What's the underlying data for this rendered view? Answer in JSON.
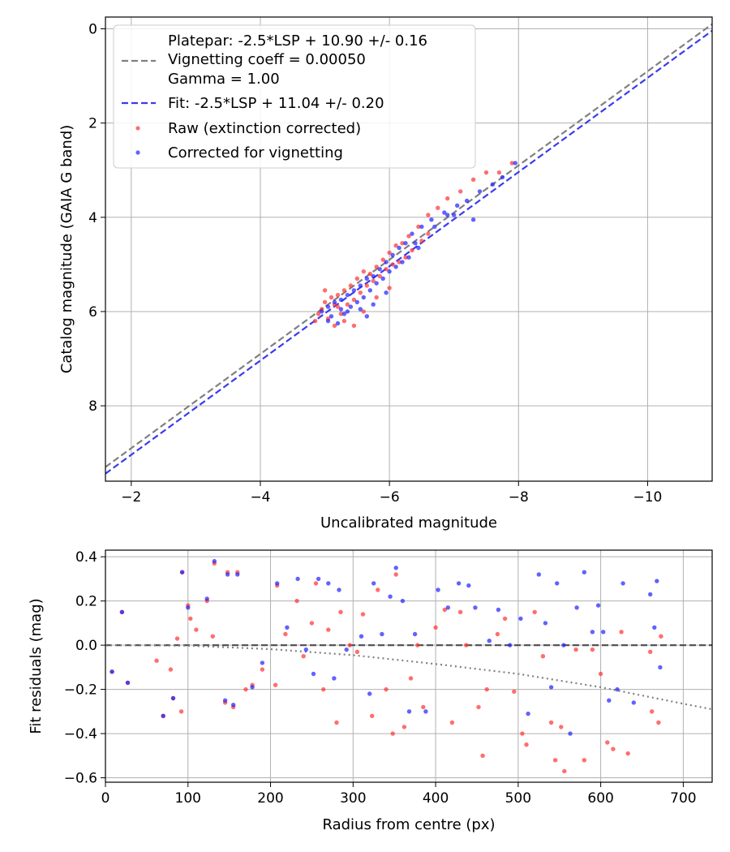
{
  "chart_data": [
    {
      "type": "scatter",
      "xlabel": "Uncalibrated magnitude",
      "ylabel": "Catalog magnitude (GAIA G band)",
      "xlim": [
        -1.6,
        -11.0
      ],
      "ylim": [
        9.6,
        -0.25
      ],
      "x_inverted": true,
      "y_inverted": true,
      "xticks": [
        -2,
        -4,
        -6,
        -8,
        -10
      ],
      "yticks": [
        0,
        2,
        4,
        6,
        8
      ],
      "grid": true,
      "legend_position": "upper-left",
      "lines": [
        {
          "name": "platepar",
          "legend": [
            "Platepar: -2.5*LSP + 10.90 +/- 0.16",
            "Vignetting coeff = 0.00050",
            "Gamma = 1.00"
          ],
          "slope": 1,
          "intercept": 10.9,
          "color": "#808080",
          "style": "dashed"
        },
        {
          "name": "fit",
          "legend": [
            "Fit: -2.5*LSP + 11.04 +/- 0.20"
          ],
          "slope": 1,
          "intercept": 11.04,
          "color": "#3a3af0",
          "style": "dashed"
        }
      ],
      "series": [
        {
          "name": "Raw (extinction corrected)",
          "color": "#ff3030",
          "points": [
            [
              -7.9,
              2.85
            ],
            [
              -7.7,
              3.05
            ],
            [
              -7.5,
              3.05
            ],
            [
              -7.3,
              3.2
            ],
            [
              -7.1,
              3.45
            ],
            [
              -6.9,
              3.6
            ],
            [
              -6.75,
              3.8
            ],
            [
              -6.6,
              3.95
            ],
            [
              -6.45,
              4.2
            ],
            [
              -6.3,
              4.4
            ],
            [
              -6.2,
              4.55
            ],
            [
              -6.1,
              4.6
            ],
            [
              -6.0,
              4.75
            ],
            [
              -5.9,
              4.9
            ],
            [
              -5.8,
              5.05
            ],
            [
              -5.7,
              5.2
            ],
            [
              -5.6,
              5.15
            ],
            [
              -5.5,
              5.3
            ],
            [
              -5.4,
              5.45
            ],
            [
              -5.3,
              5.55
            ],
            [
              -5.2,
              5.65
            ],
            [
              -5.1,
              5.7
            ],
            [
              -5.0,
              5.8
            ],
            [
              -4.95,
              5.95
            ],
            [
              -4.9,
              6.05
            ],
            [
              -5.05,
              6.15
            ],
            [
              -5.15,
              6.3
            ],
            [
              -5.25,
              6.05
            ],
            [
              -5.35,
              5.85
            ],
            [
              -5.45,
              5.75
            ],
            [
              -5.55,
              5.6
            ],
            [
              -5.65,
              5.45
            ],
            [
              -5.75,
              5.35
            ],
            [
              -5.85,
              5.25
            ],
            [
              -5.95,
              5.1
            ],
            [
              -6.05,
              5.0
            ],
            [
              -6.15,
              4.95
            ],
            [
              -6.25,
              4.85
            ],
            [
              -6.35,
              4.7
            ],
            [
              -6.5,
              4.5
            ],
            [
              -6.6,
              4.35
            ],
            [
              -5.0,
              5.55
            ],
            [
              -5.2,
              5.9
            ],
            [
              -5.3,
              6.2
            ],
            [
              -5.6,
              6.0
            ],
            [
              -5.8,
              5.7
            ],
            [
              -6.0,
              5.5
            ],
            [
              -5.45,
              6.3
            ],
            [
              -5.15,
              5.85
            ],
            [
              -4.85,
              6.2
            ]
          ]
        },
        {
          "name": "Corrected for vignetting",
          "color": "#2020ff",
          "points": [
            [
              -7.95,
              2.85
            ],
            [
              -7.75,
              3.15
            ],
            [
              -7.6,
              3.3
            ],
            [
              -7.4,
              3.45
            ],
            [
              -7.2,
              3.65
            ],
            [
              -7.05,
              3.75
            ],
            [
              -6.85,
              3.9
            ],
            [
              -6.65,
              4.05
            ],
            [
              -6.5,
              4.2
            ],
            [
              -6.35,
              4.35
            ],
            [
              -6.25,
              4.55
            ],
            [
              -6.15,
              4.65
            ],
            [
              -6.05,
              4.8
            ],
            [
              -5.95,
              4.95
            ],
            [
              -5.85,
              5.1
            ],
            [
              -5.75,
              5.25
            ],
            [
              -5.65,
              5.3
            ],
            [
              -5.55,
              5.45
            ],
            [
              -5.45,
              5.55
            ],
            [
              -5.35,
              5.65
            ],
            [
              -5.25,
              5.75
            ],
            [
              -5.15,
              5.8
            ],
            [
              -5.05,
              5.9
            ],
            [
              -4.95,
              6.0
            ],
            [
              -5.1,
              6.1
            ],
            [
              -5.2,
              6.25
            ],
            [
              -5.3,
              6.05
            ],
            [
              -5.4,
              5.9
            ],
            [
              -5.5,
              5.8
            ],
            [
              -5.6,
              5.7
            ],
            [
              -5.7,
              5.55
            ],
            [
              -5.8,
              5.4
            ],
            [
              -5.9,
              5.3
            ],
            [
              -6.0,
              5.15
            ],
            [
              -6.1,
              5.05
            ],
            [
              -6.2,
              4.95
            ],
            [
              -6.3,
              4.85
            ],
            [
              -6.45,
              4.65
            ],
            [
              -7.3,
              4.05
            ],
            [
              -7.0,
              3.95
            ],
            [
              -5.35,
              6.0
            ],
            [
              -5.55,
              5.95
            ],
            [
              -5.75,
              5.85
            ],
            [
              -5.95,
              5.6
            ],
            [
              -5.25,
              5.95
            ],
            [
              -5.05,
              6.2
            ],
            [
              -5.65,
              6.1
            ],
            [
              -6.4,
              4.55
            ],
            [
              -6.7,
              4.2
            ],
            [
              -6.9,
              3.95
            ]
          ]
        }
      ]
    },
    {
      "type": "scatter",
      "xlabel": "Radius from centre (px)",
      "ylabel": "Fit residuals (mag)",
      "xlim": [
        0,
        735
      ],
      "ylim": [
        -0.62,
        0.43
      ],
      "xticks": [
        0,
        100,
        200,
        300,
        400,
        500,
        600,
        700
      ],
      "yticks": [
        0.4,
        0.2,
        0.0,
        -0.2,
        -0.4,
        -0.6
      ],
      "ytick_labels": [
        "0.4",
        "0.2",
        "0.0",
        "−0.2",
        "−0.4",
        "−0.6"
      ],
      "grid": true,
      "lines": [
        {
          "name": "zero-line",
          "points": [
            [
              0,
              0
            ],
            [
              735,
              0
            ]
          ],
          "color": "#555555",
          "style": "dashed"
        },
        {
          "name": "vignetting-curve",
          "points": [
            [
              0,
              0
            ],
            [
              100,
              -0.002
            ],
            [
              200,
              -0.018
            ],
            [
              300,
              -0.045
            ],
            [
              400,
              -0.085
            ],
            [
              500,
              -0.13
            ],
            [
              600,
              -0.19
            ],
            [
              700,
              -0.265
            ],
            [
              735,
              -0.29
            ]
          ],
          "color": "#808080",
          "style": "dotted"
        }
      ],
      "series": [
        {
          "name": "Raw",
          "color": "#ff3030",
          "points": [
            [
              8,
              -0.12
            ],
            [
              20,
              0.15
            ],
            [
              27,
              -0.17
            ],
            [
              62,
              -0.07
            ],
            [
              70,
              -0.32
            ],
            [
              79,
              -0.11
            ],
            [
              82,
              -0.24
            ],
            [
              87,
              0.03
            ],
            [
              92,
              -0.3
            ],
            [
              93,
              0.33
            ],
            [
              100,
              0.18
            ],
            [
              103,
              0.12
            ],
            [
              110,
              0.07
            ],
            [
              123,
              0.2
            ],
            [
              130,
              0.04
            ],
            [
              132,
              0.37
            ],
            [
              145,
              -0.26
            ],
            [
              148,
              0.33
            ],
            [
              155,
              -0.28
            ],
            [
              160,
              0.33
            ],
            [
              170,
              -0.2
            ],
            [
              178,
              -0.18
            ],
            [
              190,
              -0.11
            ],
            [
              206,
              -0.18
            ],
            [
              208,
              0.27
            ],
            [
              218,
              0.05
            ],
            [
              232,
              0.2
            ],
            [
              240,
              -0.05
            ],
            [
              250,
              0.1
            ],
            [
              255,
              0.28
            ],
            [
              264,
              -0.2
            ],
            [
              270,
              0.07
            ],
            [
              280,
              -0.35
            ],
            [
              285,
              0.15
            ],
            [
              296,
              0.0
            ],
            [
              305,
              -0.03
            ],
            [
              312,
              0.14
            ],
            [
              323,
              -0.32
            ],
            [
              330,
              0.25
            ],
            [
              340,
              -0.2
            ],
            [
              348,
              -0.4
            ],
            [
              352,
              0.32
            ],
            [
              362,
              -0.37
            ],
            [
              370,
              -0.15
            ],
            [
              378,
              0.0
            ],
            [
              385,
              -0.28
            ],
            [
              400,
              0.08
            ],
            [
              411,
              0.16
            ],
            [
              420,
              -0.35
            ],
            [
              430,
              0.15
            ],
            [
              437,
              0.0
            ],
            [
              452,
              -0.28
            ],
            [
              457,
              -0.5
            ],
            [
              462,
              -0.2
            ],
            [
              475,
              0.05
            ],
            [
              484,
              0.12
            ],
            [
              495,
              -0.21
            ],
            [
              505,
              -0.4
            ],
            [
              510,
              -0.45
            ],
            [
              520,
              0.15
            ],
            [
              530,
              -0.05
            ],
            [
              540,
              -0.35
            ],
            [
              545,
              -0.52
            ],
            [
              552,
              -0.37
            ],
            [
              556,
              -0.57
            ],
            [
              570,
              -0.02
            ],
            [
              580,
              -0.52
            ],
            [
              590,
              -0.02
            ],
            [
              600,
              -0.13
            ],
            [
              608,
              -0.44
            ],
            [
              615,
              -0.47
            ],
            [
              625,
              0.06
            ],
            [
              633,
              -0.49
            ],
            [
              660,
              -0.03
            ],
            [
              662,
              -0.3
            ],
            [
              670,
              -0.35
            ],
            [
              673,
              0.04
            ]
          ]
        },
        {
          "name": "Corrected",
          "color": "#2020ff",
          "points": [
            [
              8,
              -0.12
            ],
            [
              20,
              0.15
            ],
            [
              27,
              -0.17
            ],
            [
              70,
              -0.32
            ],
            [
              82,
              -0.24
            ],
            [
              93,
              0.33
            ],
            [
              100,
              0.17
            ],
            [
              123,
              0.21
            ],
            [
              132,
              0.38
            ],
            [
              145,
              -0.25
            ],
            [
              148,
              0.32
            ],
            [
              155,
              -0.27
            ],
            [
              160,
              0.32
            ],
            [
              178,
              -0.19
            ],
            [
              190,
              -0.08
            ],
            [
              208,
              0.28
            ],
            [
              220,
              0.08
            ],
            [
              233,
              0.3
            ],
            [
              243,
              -0.02
            ],
            [
              252,
              -0.13
            ],
            [
              258,
              0.3
            ],
            [
              270,
              0.28
            ],
            [
              277,
              -0.15
            ],
            [
              283,
              0.25
            ],
            [
              292,
              -0.02
            ],
            [
              310,
              0.04
            ],
            [
              320,
              -0.22
            ],
            [
              325,
              0.28
            ],
            [
              335,
              0.05
            ],
            [
              345,
              0.22
            ],
            [
              352,
              0.35
            ],
            [
              360,
              0.2
            ],
            [
              368,
              -0.3
            ],
            [
              375,
              0.05
            ],
            [
              388,
              -0.3
            ],
            [
              403,
              0.25
            ],
            [
              415,
              0.17
            ],
            [
              428,
              0.28
            ],
            [
              440,
              0.27
            ],
            [
              448,
              0.17
            ],
            [
              465,
              0.02
            ],
            [
              476,
              0.16
            ],
            [
              490,
              0.0
            ],
            [
              503,
              0.12
            ],
            [
              512,
              -0.31
            ],
            [
              525,
              0.32
            ],
            [
              533,
              0.1
            ],
            [
              540,
              -0.19
            ],
            [
              547,
              0.28
            ],
            [
              555,
              0.0
            ],
            [
              563,
              -0.4
            ],
            [
              571,
              0.17
            ],
            [
              580,
              0.33
            ],
            [
              590,
              0.06
            ],
            [
              597,
              0.18
            ],
            [
              603,
              0.06
            ],
            [
              610,
              -0.25
            ],
            [
              620,
              -0.2
            ],
            [
              627,
              0.28
            ],
            [
              640,
              -0.26
            ],
            [
              660,
              0.23
            ],
            [
              665,
              0.08
            ],
            [
              668,
              0.29
            ],
            [
              672,
              -0.1
            ]
          ]
        }
      ]
    }
  ]
}
